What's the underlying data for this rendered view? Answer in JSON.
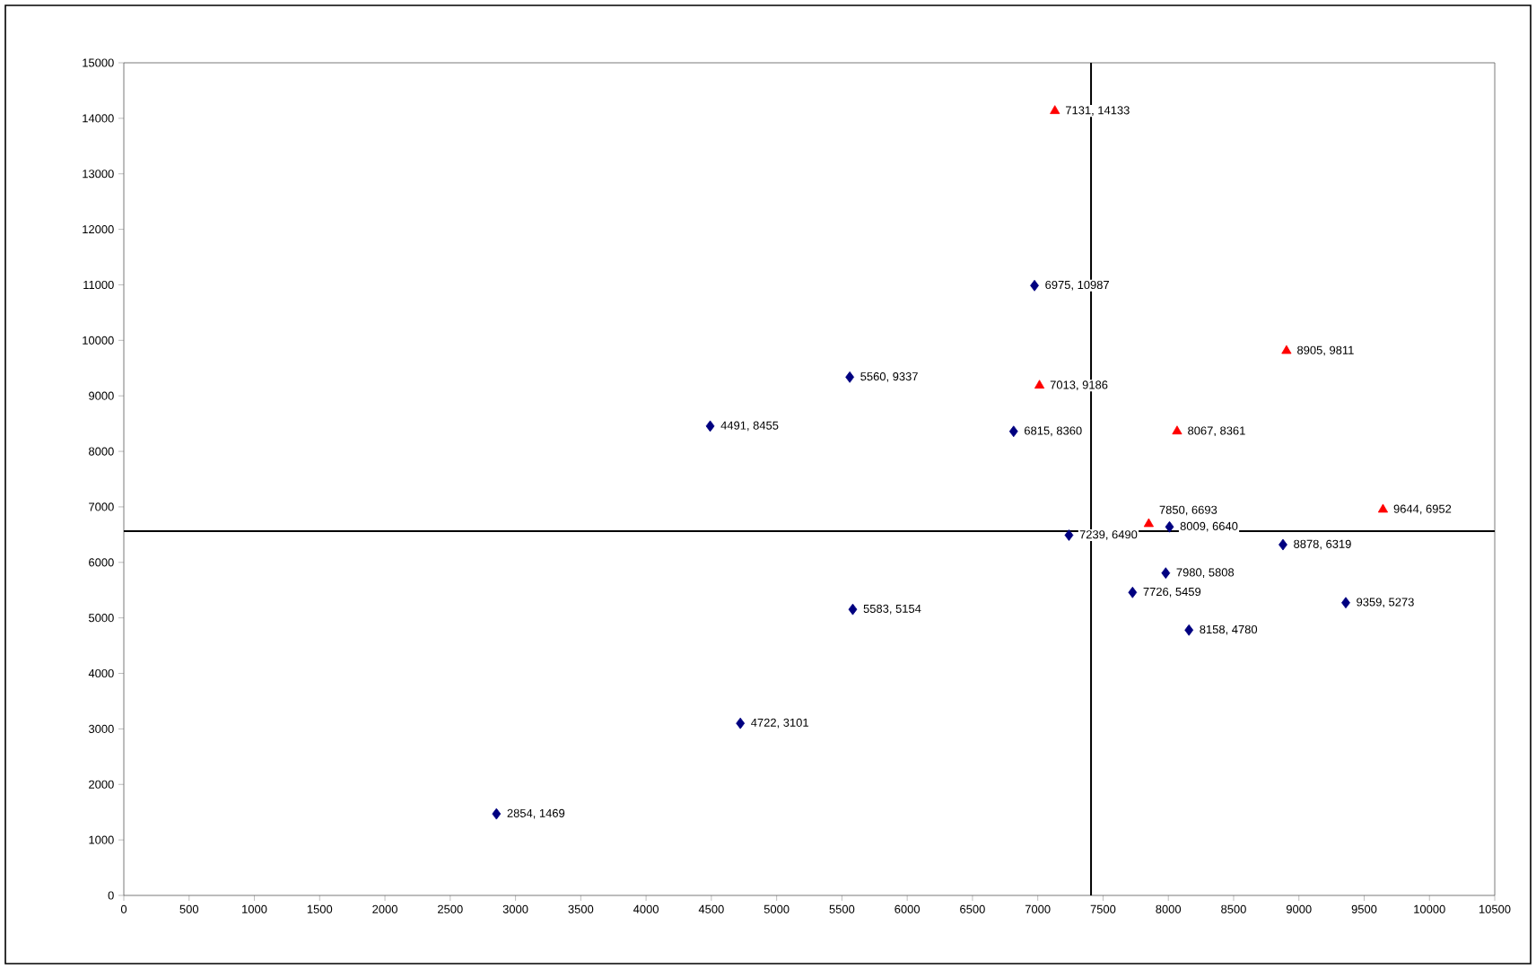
{
  "chart_data": {
    "type": "scatter",
    "xlim": [
      0,
      10500
    ],
    "xticks": [
      0,
      500,
      1000,
      1500,
      2000,
      2500,
      3000,
      3500,
      4000,
      4500,
      5000,
      5500,
      6000,
      6500,
      7000,
      7500,
      8000,
      8500,
      9000,
      9500,
      10000,
      10500
    ],
    "ylim": [
      0,
      15000
    ],
    "yticks": [
      0,
      1000,
      2000,
      3000,
      4000,
      5000,
      6000,
      7000,
      8000,
      9000,
      10000,
      11000,
      12000,
      13000,
      14000,
      15000
    ],
    "series": [
      {
        "color": "#000080",
        "marker": "diamond",
        "x": [
          2854,
          4722,
          4491,
          5560,
          5583,
          6975,
          6815,
          7239,
          7980,
          7726,
          8158,
          8878,
          9359,
          8009
        ],
        "values": [
          1469,
          3101,
          8455,
          9337,
          5154,
          10987,
          8360,
          6490,
          5808,
          5459,
          4780,
          6319,
          5273,
          6640
        ],
        "value_labels": [
          "2854, 1469",
          "4722, 3101",
          "4491, 8455",
          "5560, 9337",
          "5583, 5154",
          "6975, 10987",
          "6815, 8360",
          "7239, 6490",
          "7980, 5808",
          "7726, 5459",
          "8158, 4780",
          "8878, 6319",
          "9359, 5273",
          "8009, 6640"
        ]
      },
      {
        "color": "#ff0000",
        "marker": "triangle",
        "x": [
          7131,
          7013,
          8905,
          8067,
          9644,
          7850
        ],
        "values": [
          14133,
          9186,
          9811,
          8361,
          6952,
          6693
        ],
        "value_labels": [
          "7131, 14133",
          "7013, 9186",
          "8905, 9811",
          "8067, 8361",
          "9644, 6952",
          "7850, 6693"
        ]
      }
    ],
    "ref_lines": [
      {
        "axis": "x",
        "value": 7408,
        "color": "#000000"
      },
      {
        "axis": "y",
        "value": 6563,
        "color": "#000000"
      }
    ]
  }
}
